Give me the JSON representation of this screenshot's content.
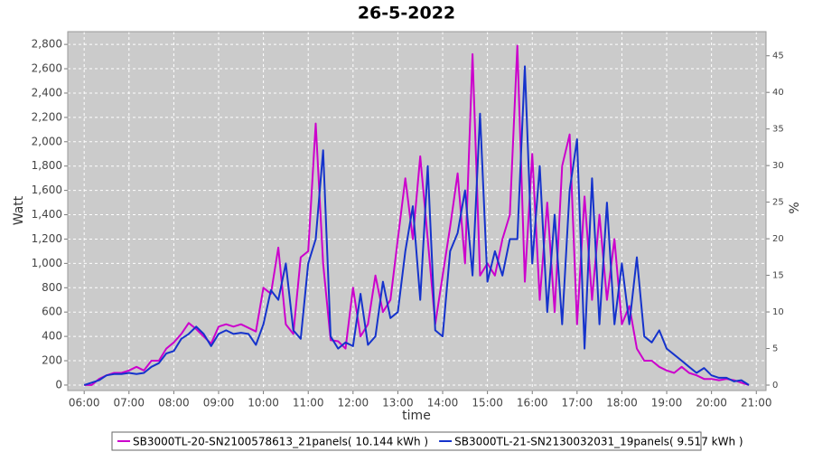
{
  "chart_data": {
    "type": "line",
    "title": "26-5-2022",
    "x_label": "time",
    "y_label": "Watt",
    "y2_label": "%",
    "x": [
      "06:00",
      "06:10",
      "06:20",
      "06:30",
      "06:40",
      "06:50",
      "07:00",
      "07:10",
      "07:20",
      "07:30",
      "07:40",
      "07:50",
      "08:00",
      "08:10",
      "08:20",
      "08:30",
      "08:40",
      "08:50",
      "09:00",
      "09:10",
      "09:20",
      "09:30",
      "09:40",
      "09:50",
      "10:00",
      "10:10",
      "10:20",
      "10:30",
      "10:40",
      "10:50",
      "11:00",
      "11:10",
      "11:20",
      "11:30",
      "11:40",
      "11:50",
      "12:00",
      "12:10",
      "12:20",
      "12:30",
      "12:40",
      "12:50",
      "13:00",
      "13:10",
      "13:20",
      "13:30",
      "13:40",
      "13:50",
      "14:00",
      "14:10",
      "14:20",
      "14:30",
      "14:40",
      "14:50",
      "15:00",
      "15:10",
      "15:20",
      "15:30",
      "15:40",
      "15:50",
      "16:00",
      "16:10",
      "16:20",
      "16:30",
      "16:40",
      "16:50",
      "17:00",
      "17:10",
      "17:20",
      "17:30",
      "17:40",
      "17:50",
      "18:00",
      "18:10",
      "18:20",
      "18:30",
      "18:40",
      "18:50",
      "19:00",
      "19:10",
      "19:20",
      "19:30",
      "19:40",
      "19:50",
      "20:00",
      "20:10",
      "20:20",
      "20:30",
      "20:40",
      "20:50"
    ],
    "series": [
      {
        "name": "SB3000TL-20-SN2100578613_21panels( 10.144 kWh )",
        "color": "#cc00cc",
        "values": [
          0,
          0,
          50,
          80,
          100,
          100,
          120,
          150,
          120,
          200,
          200,
          300,
          350,
          420,
          510,
          460,
          400,
          340,
          480,
          500,
          480,
          500,
          470,
          440,
          800,
          750,
          1130,
          500,
          420,
          1050,
          1100,
          2150,
          1000,
          370,
          360,
          300,
          800,
          400,
          500,
          900,
          600,
          700,
          1200,
          1700,
          1200,
          1880,
          1200,
          500,
          900,
          1300,
          1740,
          1000,
          2720,
          900,
          1000,
          900,
          1200,
          1400,
          2790,
          850,
          1900,
          700,
          1500,
          600,
          1800,
          2060,
          500,
          1550,
          700,
          1400,
          700,
          1200,
          500,
          650,
          300,
          200,
          200,
          150,
          120,
          100,
          150,
          100,
          80,
          50,
          50,
          40,
          50,
          40,
          20,
          0
        ]
      },
      {
        "name": "SB3000TL-21-SN2130032031_19panels( 9.517 kWh )",
        "color": "#1533cc",
        "values": [
          0,
          20,
          40,
          80,
          90,
          90,
          100,
          90,
          100,
          150,
          180,
          260,
          280,
          380,
          420,
          480,
          420,
          320,
          420,
          450,
          420,
          430,
          420,
          330,
          500,
          780,
          700,
          1000,
          450,
          380,
          1000,
          1200,
          1930,
          400,
          300,
          350,
          320,
          750,
          330,
          400,
          850,
          550,
          600,
          1100,
          1470,
          700,
          1800,
          450,
          400,
          1100,
          1250,
          1600,
          900,
          2230,
          850,
          1100,
          900,
          1200,
          1200,
          2620,
          1000,
          1800,
          600,
          1400,
          500,
          1600,
          2020,
          300,
          1700,
          500,
          1500,
          500,
          1000,
          500,
          1050,
          400,
          350,
          450,
          300,
          250,
          200,
          150,
          100,
          140,
          80,
          60,
          60,
          30,
          40,
          0
        ]
      }
    ],
    "xlim": [
      "05:38",
      "21:13"
    ],
    "xticks": [
      "06:00",
      "07:00",
      "08:00",
      "09:00",
      "10:00",
      "11:00",
      "12:00",
      "13:00",
      "14:00",
      "15:00",
      "16:00",
      "17:00",
      "18:00",
      "19:00",
      "20:00",
      "21:00"
    ],
    "ylim": [
      -45,
      2905
    ],
    "yticks": [
      0,
      200,
      400,
      600,
      800,
      {
        "value": 1000,
        "label": "1,000"
      },
      {
        "value": 1200,
        "label": "1,200"
      },
      {
        "value": 1400,
        "label": "1,400"
      },
      {
        "value": 1600,
        "label": "1,600"
      },
      {
        "value": 1800,
        "label": "1,800"
      },
      {
        "value": 2000,
        "label": "2,000"
      },
      {
        "value": 2200,
        "label": "2,200"
      },
      {
        "value": 2400,
        "label": "2,400"
      },
      {
        "value": 2600,
        "label": "2,600"
      },
      {
        "value": 2800,
        "label": "2,800"
      }
    ],
    "y2lim": [
      -0.74,
      48.3
    ],
    "y2ticks": [
      0,
      5,
      10,
      15,
      20,
      25,
      30,
      35,
      40,
      45
    ],
    "grid": true,
    "legend": "bottom"
  }
}
